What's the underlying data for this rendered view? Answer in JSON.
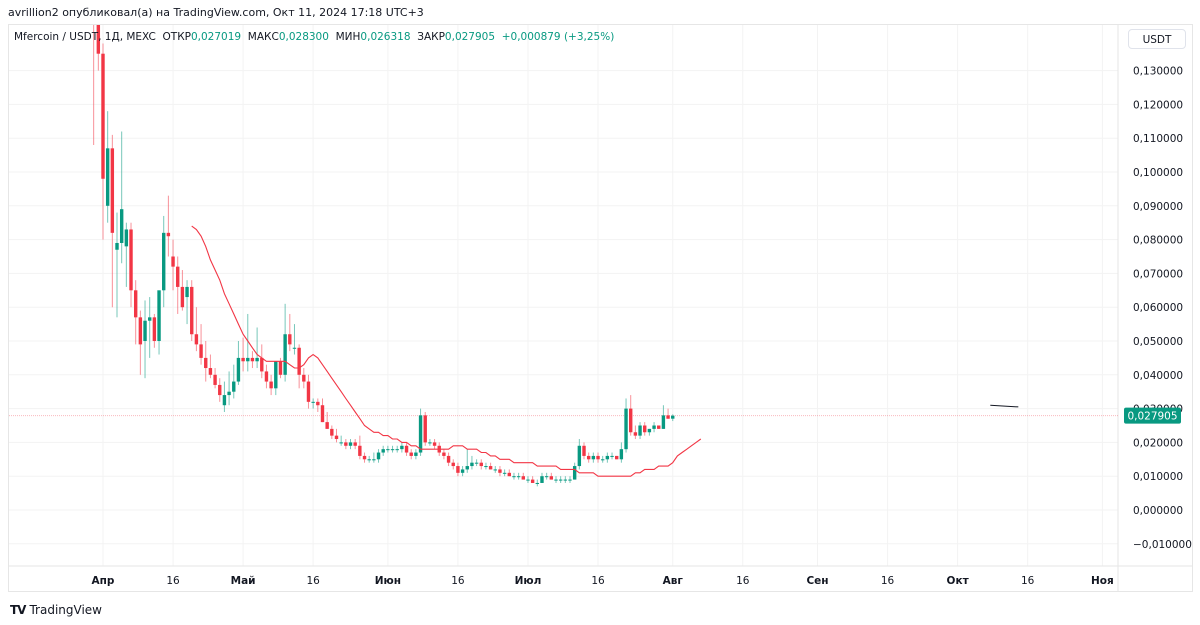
{
  "header": {
    "published": "avrillion2 опубликовал(а) на TradingView.com, Окт 11, 2024 17:18 UTC+3"
  },
  "legend": {
    "symbol": "Mfercoin / USDT, 1Д, MEXC",
    "open_label": "ОТКР",
    "open": "0,027019",
    "high_label": "МАКС",
    "high": "0,028300",
    "low_label": "МИН",
    "low": "0,026318",
    "close_label": "ЗАКР",
    "close": "0,027905",
    "change": "+0,000879 (+3,25%)"
  },
  "price_axis": {
    "currency": "USDT",
    "last_price_label": "0,027905"
  },
  "brand": {
    "name": "TradingView"
  },
  "colors": {
    "up": "#089981",
    "down": "#f23645",
    "ma": "#f23645",
    "grid": "#f3f3f3",
    "last_price_bg": "#089981"
  },
  "chart_data": {
    "type": "candlestick",
    "title": "Mfercoin / USDT, 1Д, MEXC",
    "ylabel": "USDT",
    "ylim": [
      -0.013,
      0.138
    ],
    "y_ticks": [
      -0.01,
      0.0,
      0.01,
      0.02,
      0.03,
      0.04,
      0.05,
      0.06,
      0.07,
      0.08,
      0.09,
      0.1,
      0.11,
      0.12,
      0.13
    ],
    "y_tick_labels": [
      "−0,010000",
      "0,000000",
      "0,010000",
      "0,020000",
      "0,030000",
      "0,040000",
      "0,050000",
      "0,060000",
      "0,070000",
      "0,080000",
      "0,090000",
      "0,100000",
      "0,110000",
      "0,120000",
      "0,130000"
    ],
    "x_ticks": [
      {
        "label": "Апр",
        "day": 0,
        "bold": true
      },
      {
        "label": "16",
        "day": 15
      },
      {
        "label": "Май",
        "day": 30,
        "bold": true
      },
      {
        "label": "16",
        "day": 45
      },
      {
        "label": "Июн",
        "day": 61,
        "bold": true
      },
      {
        "label": "16",
        "day": 76
      },
      {
        "label": "Июл",
        "day": 91,
        "bold": true
      },
      {
        "label": "16",
        "day": 106
      },
      {
        "label": "Авг",
        "day": 122,
        "bold": true
      },
      {
        "label": "16",
        "day": 137
      },
      {
        "label": "Сен",
        "day": 153,
        "bold": true
      },
      {
        "label": "16",
        "day": 168
      },
      {
        "label": "Окт",
        "day": 183,
        "bold": true
      },
      {
        "label": "16",
        "day": 198
      },
      {
        "label": "Ноя",
        "day": 214,
        "bold": true
      }
    ],
    "last_price": 0.027905,
    "start_day": -2,
    "candles_ohlc": [
      [
        0.155,
        0.16,
        0.108,
        0.15
      ],
      [
        0.15,
        0.15,
        0.13,
        0.135
      ],
      [
        0.135,
        0.138,
        0.08,
        0.098
      ],
      [
        0.09,
        0.118,
        0.085,
        0.107
      ],
      [
        0.107,
        0.111,
        0.06,
        0.082
      ],
      [
        0.077,
        0.088,
        0.057,
        0.079
      ],
      [
        0.079,
        0.112,
        0.073,
        0.089
      ],
      [
        0.078,
        0.085,
        0.066,
        0.083
      ],
      [
        0.083,
        0.085,
        0.06,
        0.065
      ],
      [
        0.065,
        0.068,
        0.049,
        0.057
      ],
      [
        0.057,
        0.059,
        0.04,
        0.049
      ],
      [
        0.05,
        0.062,
        0.039,
        0.056
      ],
      [
        0.056,
        0.063,
        0.045,
        0.057
      ],
      [
        0.057,
        0.058,
        0.048,
        0.05
      ],
      [
        0.05,
        0.063,
        0.046,
        0.065
      ],
      [
        0.065,
        0.087,
        0.06,
        0.082
      ],
      [
        0.082,
        0.093,
        0.075,
        0.081
      ],
      [
        0.075,
        0.08,
        0.065,
        0.072
      ],
      [
        0.072,
        0.075,
        0.058,
        0.066
      ],
      [
        0.066,
        0.071,
        0.059,
        0.06
      ],
      [
        0.063,
        0.068,
        0.055,
        0.066
      ],
      [
        0.066,
        0.068,
        0.05,
        0.052
      ],
      [
        0.052,
        0.06,
        0.047,
        0.049
      ],
      [
        0.049,
        0.055,
        0.043,
        0.045
      ],
      [
        0.045,
        0.05,
        0.038,
        0.042
      ],
      [
        0.042,
        0.046,
        0.039,
        0.04
      ],
      [
        0.04,
        0.042,
        0.036,
        0.037
      ],
      [
        0.037,
        0.039,
        0.032,
        0.034
      ],
      [
        0.031,
        0.038,
        0.029,
        0.034
      ],
      [
        0.034,
        0.041,
        0.031,
        0.035
      ],
      [
        0.035,
        0.043,
        0.033,
        0.038
      ],
      [
        0.038,
        0.05,
        0.037,
        0.045
      ],
      [
        0.045,
        0.051,
        0.041,
        0.044
      ],
      [
        0.044,
        0.058,
        0.041,
        0.045
      ],
      [
        0.045,
        0.047,
        0.042,
        0.044
      ],
      [
        0.044,
        0.054,
        0.042,
        0.045
      ],
      [
        0.045,
        0.049,
        0.039,
        0.041
      ],
      [
        0.041,
        0.043,
        0.036,
        0.038
      ],
      [
        0.038,
        0.04,
        0.034,
        0.036
      ],
      [
        0.036,
        0.043,
        0.034,
        0.044
      ],
      [
        0.044,
        0.045,
        0.039,
        0.04
      ],
      [
        0.04,
        0.061,
        0.038,
        0.052
      ],
      [
        0.052,
        0.058,
        0.047,
        0.049
      ],
      [
        0.048,
        0.055,
        0.046,
        0.048
      ],
      [
        0.048,
        0.049,
        0.036,
        0.04
      ],
      [
        0.04,
        0.042,
        0.036,
        0.038
      ],
      [
        0.038,
        0.04,
        0.03,
        0.032
      ],
      [
        0.032,
        0.033,
        0.03,
        0.032
      ],
      [
        0.032,
        0.033,
        0.029,
        0.031
      ],
      [
        0.031,
        0.033,
        0.026,
        0.026
      ],
      [
        0.026,
        0.029,
        0.024,
        0.024
      ],
      [
        0.024,
        0.025,
        0.021,
        0.022
      ],
      [
        0.022,
        0.024,
        0.02,
        0.021
      ],
      [
        0.02,
        0.022,
        0.019,
        0.02
      ],
      [
        0.02,
        0.021,
        0.018,
        0.019
      ],
      [
        0.019,
        0.021,
        0.018,
        0.02
      ],
      [
        0.02,
        0.021,
        0.018,
        0.019
      ],
      [
        0.019,
        0.022,
        0.015,
        0.016
      ],
      [
        0.016,
        0.017,
        0.014,
        0.015
      ],
      [
        0.015,
        0.016,
        0.014,
        0.015
      ],
      [
        0.015,
        0.017,
        0.014,
        0.015
      ],
      [
        0.015,
        0.018,
        0.014,
        0.017
      ],
      [
        0.017,
        0.019,
        0.016,
        0.018
      ],
      [
        0.018,
        0.019,
        0.017,
        0.018
      ],
      [
        0.018,
        0.019,
        0.017,
        0.018
      ],
      [
        0.018,
        0.019,
        0.017,
        0.018
      ],
      [
        0.018,
        0.02,
        0.017,
        0.019
      ],
      [
        0.019,
        0.02,
        0.016,
        0.017
      ],
      [
        0.017,
        0.018,
        0.015,
        0.016
      ],
      [
        0.016,
        0.018,
        0.015,
        0.017
      ],
      [
        0.017,
        0.03,
        0.016,
        0.028
      ],
      [
        0.028,
        0.029,
        0.019,
        0.02
      ],
      [
        0.02,
        0.021,
        0.019,
        0.02
      ],
      [
        0.02,
        0.021,
        0.018,
        0.019
      ],
      [
        0.019,
        0.02,
        0.016,
        0.017
      ],
      [
        0.017,
        0.018,
        0.015,
        0.016
      ],
      [
        0.016,
        0.017,
        0.013,
        0.014
      ],
      [
        0.014,
        0.015,
        0.012,
        0.013
      ],
      [
        0.013,
        0.014,
        0.01,
        0.011
      ],
      [
        0.011,
        0.013,
        0.01,
        0.012
      ],
      [
        0.012,
        0.018,
        0.011,
        0.013
      ],
      [
        0.013,
        0.016,
        0.012,
        0.014
      ],
      [
        0.014,
        0.015,
        0.013,
        0.014
      ],
      [
        0.014,
        0.015,
        0.012,
        0.013
      ],
      [
        0.013,
        0.014,
        0.012,
        0.013
      ],
      [
        0.013,
        0.014,
        0.012,
        0.012
      ],
      [
        0.012,
        0.013,
        0.011,
        0.012
      ],
      [
        0.012,
        0.013,
        0.01,
        0.011
      ],
      [
        0.011,
        0.012,
        0.01,
        0.011
      ],
      [
        0.011,
        0.012,
        0.01,
        0.01
      ],
      [
        0.01,
        0.011,
        0.009,
        0.01
      ],
      [
        0.01,
        0.011,
        0.009,
        0.01
      ],
      [
        0.01,
        0.011,
        0.009,
        0.009
      ],
      [
        0.009,
        0.01,
        0.008,
        0.009
      ],
      [
        0.009,
        0.01,
        0.008,
        0.008
      ],
      [
        0.008,
        0.009,
        0.007,
        0.008
      ],
      [
        0.008,
        0.011,
        0.008,
        0.01
      ],
      [
        0.01,
        0.011,
        0.009,
        0.01
      ],
      [
        0.01,
        0.011,
        0.009,
        0.009
      ],
      [
        0.009,
        0.01,
        0.008,
        0.009
      ],
      [
        0.009,
        0.01,
        0.008,
        0.009
      ],
      [
        0.009,
        0.01,
        0.008,
        0.009
      ],
      [
        0.009,
        0.01,
        0.008,
        0.009
      ],
      [
        0.009,
        0.014,
        0.009,
        0.013
      ],
      [
        0.013,
        0.021,
        0.012,
        0.019
      ],
      [
        0.019,
        0.02,
        0.015,
        0.016
      ],
      [
        0.016,
        0.017,
        0.014,
        0.015
      ],
      [
        0.015,
        0.017,
        0.014,
        0.016
      ],
      [
        0.016,
        0.017,
        0.014,
        0.015
      ],
      [
        0.015,
        0.016,
        0.014,
        0.015
      ],
      [
        0.015,
        0.017,
        0.014,
        0.016
      ],
      [
        0.016,
        0.017,
        0.015,
        0.016
      ],
      [
        0.016,
        0.016,
        0.015,
        0.015
      ],
      [
        0.015,
        0.02,
        0.014,
        0.018
      ],
      [
        0.018,
        0.033,
        0.017,
        0.03
      ],
      [
        0.03,
        0.034,
        0.022,
        0.023
      ],
      [
        0.023,
        0.025,
        0.021,
        0.022
      ],
      [
        0.022,
        0.026,
        0.021,
        0.025
      ],
      [
        0.025,
        0.026,
        0.022,
        0.023
      ],
      [
        0.023,
        0.024,
        0.022,
        0.024
      ],
      [
        0.024,
        0.026,
        0.023,
        0.025
      ],
      [
        0.025,
        0.025,
        0.024,
        0.024
      ],
      [
        0.024,
        0.031,
        0.024,
        0.028
      ],
      [
        0.028,
        0.03,
        0.027,
        0.027
      ],
      [
        0.027019,
        0.0283,
        0.026318,
        0.027905
      ]
    ],
    "ma_start_index": 21,
    "ma_line": [
      0.084,
      0.083,
      0.081,
      0.078,
      0.074,
      0.071,
      0.068,
      0.064,
      0.061,
      0.058,
      0.055,
      0.052,
      0.05,
      0.048,
      0.046,
      0.045,
      0.044,
      0.044,
      0.044,
      0.044,
      0.044,
      0.043,
      0.042,
      0.042,
      0.043,
      0.045,
      0.046,
      0.045,
      0.043,
      0.041,
      0.039,
      0.037,
      0.035,
      0.033,
      0.031,
      0.029,
      0.027,
      0.025,
      0.024,
      0.023,
      0.023,
      0.022,
      0.022,
      0.021,
      0.021,
      0.02,
      0.02,
      0.019,
      0.019,
      0.018,
      0.018,
      0.018,
      0.018,
      0.018,
      0.018,
      0.018,
      0.019,
      0.019,
      0.019,
      0.018,
      0.018,
      0.018,
      0.017,
      0.017,
      0.016,
      0.016,
      0.015,
      0.015,
      0.015,
      0.014,
      0.014,
      0.014,
      0.014,
      0.014,
      0.013,
      0.013,
      0.013,
      0.013,
      0.013,
      0.012,
      0.012,
      0.012,
      0.012,
      0.011,
      0.011,
      0.011,
      0.011,
      0.01,
      0.01,
      0.01,
      0.01,
      0.01,
      0.01,
      0.01,
      0.01,
      0.011,
      0.011,
      0.012,
      0.012,
      0.012,
      0.013,
      0.013,
      0.013,
      0.014,
      0.016,
      0.017,
      0.018,
      0.019,
      0.02,
      0.021
    ],
    "trendline": {
      "x1_day": 190,
      "y1": 0.031,
      "x2_day": 196,
      "y2": 0.0305
    }
  }
}
